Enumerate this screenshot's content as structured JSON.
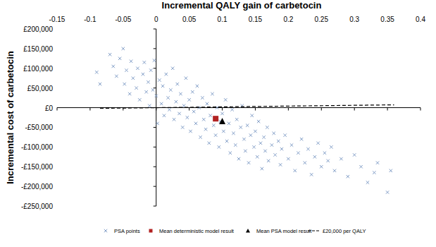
{
  "chart_data": {
    "type": "scatter",
    "xlabel": "Incremental QALY gain of carbetocin",
    "ylabel": "Incremental cost of carbetocin",
    "xlim": [
      -0.15,
      0.4
    ],
    "xticks": [
      -0.15,
      -0.1,
      -0.05,
      0,
      0.05,
      0.1,
      0.15,
      0.2,
      0.25,
      0.3,
      0.35,
      0.4
    ],
    "ylim": [
      -250000,
      200000
    ],
    "yticks": [
      {
        "value": -250000,
        "label": "-£250,000"
      },
      {
        "value": -200000,
        "label": "-£200,000"
      },
      {
        "value": -150000,
        "label": "-£150,000"
      },
      {
        "value": -100000,
        "label": "-£100,000"
      },
      {
        "value": -50000,
        "label": "-£50,000"
      },
      {
        "value": 0,
        "label": "£0"
      },
      {
        "value": 50000,
        "label": "£50,000"
      },
      {
        "value": 100000,
        "label": "£100,000"
      },
      {
        "value": 150000,
        "label": "£150,000"
      },
      {
        "value": 200000,
        "label": "£200,000"
      }
    ],
    "grid": false,
    "legend": "bottom",
    "series": [
      {
        "name": "PSA points",
        "type": "scatter",
        "marker": "x",
        "color": "#7f9cc6",
        "x": [
          -0.09,
          -0.085,
          -0.07,
          -0.065,
          -0.06,
          -0.055,
          -0.05,
          -0.048,
          -0.045,
          -0.04,
          -0.038,
          -0.035,
          -0.03,
          -0.028,
          -0.025,
          -0.02,
          -0.018,
          -0.015,
          -0.012,
          -0.01,
          -0.008,
          -0.005,
          -0.003,
          0,
          0.002,
          0.005,
          0.008,
          0.01,
          0.012,
          0.015,
          0.018,
          0.02,
          0.022,
          0.025,
          0.027,
          0.03,
          0.032,
          0.035,
          0.037,
          0.04,
          0.042,
          0.045,
          0.047,
          0.05,
          0.052,
          0.055,
          0.057,
          0.06,
          0.062,
          0.065,
          0.067,
          0.07,
          0.072,
          0.075,
          0.077,
          0.08,
          0.082,
          0.085,
          0.087,
          0.09,
          0.092,
          0.095,
          0.097,
          0.1,
          0.102,
          0.105,
          0.107,
          0.11,
          0.112,
          0.115,
          0.117,
          0.12,
          0.122,
          0.125,
          0.128,
          0.13,
          0.133,
          0.135,
          0.138,
          0.14,
          0.143,
          0.145,
          0.148,
          0.15,
          0.153,
          0.155,
          0.158,
          0.16,
          0.163,
          0.165,
          0.168,
          0.17,
          0.175,
          0.178,
          0.18,
          0.185,
          0.188,
          0.19,
          0.195,
          0.2,
          0.205,
          0.21,
          0.215,
          0.22,
          0.225,
          0.23,
          0.235,
          0.24,
          0.245,
          0.25,
          0.255,
          0.26,
          0.265,
          0.27,
          0.28,
          0.29,
          0.3,
          0.31,
          0.32,
          0.33,
          0.35,
          0.355,
          0.335
        ],
        "values": [
          90000,
          60000,
          135000,
          105000,
          80000,
          125000,
          150000,
          60000,
          95000,
          35000,
          118000,
          75000,
          50000,
          100000,
          20000,
          85000,
          115000,
          40000,
          65000,
          5000,
          95000,
          45000,
          120000,
          30000,
          -40000,
          70000,
          10000,
          55000,
          -20000,
          85000,
          25000,
          -5000,
          45000,
          100000,
          -30000,
          15000,
          60000,
          -15000,
          35000,
          -50000,
          5000,
          75000,
          -25000,
          20000,
          -60000,
          40000,
          -10000,
          -40000,
          55000,
          0,
          -75000,
          25000,
          -30000,
          -55000,
          10000,
          -90000,
          -20000,
          35000,
          -45000,
          -70000,
          0,
          -100000,
          -35000,
          -15000,
          -60000,
          20000,
          -85000,
          -40000,
          -115000,
          -5000,
          -65000,
          -95000,
          -30000,
          -130000,
          -50000,
          5000,
          -80000,
          -110000,
          -45000,
          -140000,
          -70000,
          -20000,
          -100000,
          -60000,
          -125000,
          -35000,
          -90000,
          -155000,
          -75000,
          -110000,
          -50000,
          -135000,
          -95000,
          -65000,
          -120000,
          -85000,
          -145000,
          -105000,
          -70000,
          -130000,
          -95000,
          -160000,
          -115000,
          -80000,
          -140000,
          -105000,
          -170000,
          -125000,
          -90000,
          -150000,
          -115000,
          -135000,
          -100000,
          -160000,
          -130000,
          -175000,
          -120000,
          -150000,
          -190000,
          -165000,
          -215000,
          -160000,
          -140000
        ]
      },
      {
        "name": "Mean deterministic model result",
        "type": "scatter",
        "marker": "square",
        "color": "#b22222",
        "x": [
          0.09
        ],
        "values": [
          -28000
        ]
      },
      {
        "name": "Mean PSA model result",
        "type": "scatter",
        "marker": "triangle",
        "color": "#000000",
        "x": [
          0.1
        ],
        "values": [
          -35000
        ]
      },
      {
        "name": "£20,000 per QALY",
        "type": "line",
        "line_style": "dashed",
        "color": "#000000",
        "x": [
          -0.085,
          0.36
        ],
        "values": [
          -1700,
          7200
        ]
      }
    ]
  }
}
